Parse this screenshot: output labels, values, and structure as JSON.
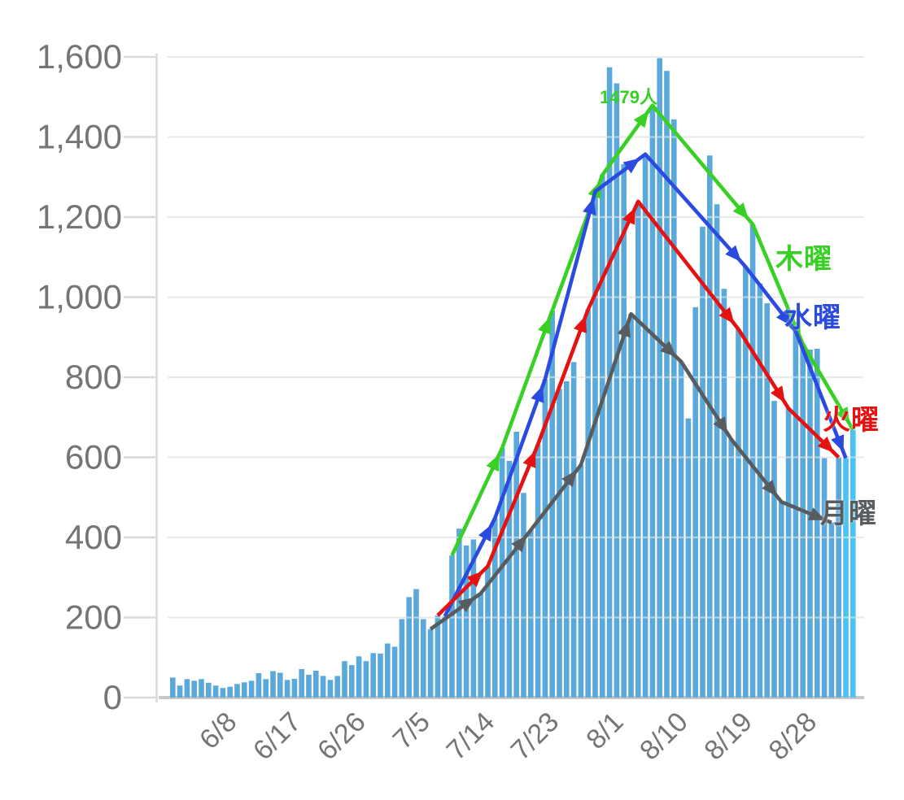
{
  "chart_data": {
    "type": "bar+line",
    "title": "",
    "xlabel": "",
    "ylabel": "",
    "ylim": [
      0,
      1600
    ],
    "grid": true,
    "y_ticks": [
      "0",
      "200",
      "400",
      "600",
      "800",
      "1,000",
      "1,200",
      "1,400",
      "1,600"
    ],
    "x_ticks": [
      "6/8",
      "6/17",
      "6/26",
      "7/5",
      "7/14",
      "7/23",
      "8/1",
      "8/10",
      "8/19",
      "8/28"
    ],
    "categories": [
      "5/31",
      "6/1",
      "6/2",
      "6/3",
      "6/4",
      "6/5",
      "6/6",
      "6/7",
      "6/8",
      "6/9",
      "6/10",
      "6/11",
      "6/12",
      "6/13",
      "6/14",
      "6/15",
      "6/16",
      "6/17",
      "6/18",
      "6/19",
      "6/20",
      "6/21",
      "6/22",
      "6/23",
      "6/24",
      "6/25",
      "6/26",
      "6/27",
      "6/28",
      "6/29",
      "6/30",
      "7/1",
      "7/2",
      "7/3",
      "7/4",
      "7/5",
      "7/6",
      "7/7",
      "7/8",
      "7/9",
      "7/10",
      "7/11",
      "7/12",
      "7/13",
      "7/14",
      "7/15",
      "7/16",
      "7/17",
      "7/18",
      "7/19",
      "7/20",
      "7/21",
      "7/22",
      "7/23",
      "7/24",
      "7/25",
      "7/26",
      "7/27",
      "7/28",
      "7/29",
      "7/30",
      "7/31",
      "8/1",
      "8/2",
      "8/3",
      "8/4",
      "8/5",
      "8/6",
      "8/7",
      "8/8",
      "8/9",
      "8/10",
      "8/11",
      "8/12",
      "8/13",
      "8/14",
      "8/15",
      "8/16",
      "8/17",
      "8/18",
      "8/19",
      "8/20",
      "8/21",
      "8/22",
      "8/23",
      "8/24",
      "8/25",
      "8/26",
      "8/27",
      "8/28",
      "8/29",
      "8/30",
      "8/31",
      "9/1",
      "9/2",
      "9/3"
    ],
    "values": [
      50,
      30,
      46,
      42,
      46,
      37,
      30,
      24,
      27,
      34,
      38,
      42,
      61,
      46,
      66,
      62,
      44,
      47,
      71,
      57,
      67,
      54,
      44,
      54,
      91,
      81,
      103,
      91,
      111,
      110,
      135,
      127,
      196,
      251,
      271,
      196,
      171,
      205,
      203,
      355,
      422,
      380,
      395,
      260,
      328,
      448,
      623,
      591,
      664,
      511,
      418,
      632,
      795,
      966,
      771,
      790,
      838,
      581,
      969,
      1264,
      1305,
      1574,
      1534,
      1332,
      958,
      1239,
      1357,
      1479,
      1597,
      1565,
      1444,
      839,
      697,
      975,
      1176,
      1354,
      1232,
      1021,
      645,
      920,
      1076,
      1182,
      1034,
      985,
      741,
      489,
      722,
      915,
      883,
      869,
      871,
      598,
      437,
      600,
      598,
      669
    ],
    "bar_color": "#5AA9DA",
    "recent_bar_color": "#4BC2F1",
    "recent_bar_count": 2,
    "series": [
      {
        "name": "thursday",
        "label": "木曜",
        "color": "#38D024",
        "dates": [
          "7/9",
          "7/16",
          "7/23",
          "7/30",
          "8/6",
          "8/20",
          "8/27",
          "9/3"
        ],
        "values": [
          355,
          623,
          966,
          1305,
          1479,
          1182,
          883,
          669
        ]
      },
      {
        "name": "wednesday",
        "label": "水曜",
        "color": "#2B4BE0",
        "dates": [
          "7/8",
          "7/15",
          "7/22",
          "7/29",
          "8/5",
          "8/19",
          "8/26",
          "9/2"
        ],
        "values": [
          203,
          448,
          795,
          1264,
          1357,
          1076,
          915,
          598
        ]
      },
      {
        "name": "tuesday",
        "label": "火曜",
        "color": "#E51212",
        "dates": [
          "7/7",
          "7/14",
          "7/21",
          "7/28",
          "8/4",
          "8/18",
          "8/25",
          "9/1"
        ],
        "values": [
          205,
          328,
          632,
          969,
          1239,
          920,
          722,
          600
        ]
      },
      {
        "name": "monday",
        "label": "月曜",
        "color": "#595C5E",
        "dates": [
          "7/6",
          "7/13",
          "7/20",
          "7/27",
          "8/3",
          "8/10",
          "8/17",
          "8/24",
          "8/31"
        ],
        "values": [
          171,
          260,
          418,
          581,
          958,
          839,
          645,
          489,
          437
        ]
      }
    ],
    "annotation": {
      "text": "1479人",
      "series": "thursday",
      "date": "8/6",
      "value": 1479
    },
    "axis_text_color": "#757575",
    "grid_color": "#E3E3E3",
    "baseline_color": "#C8C8C8"
  }
}
